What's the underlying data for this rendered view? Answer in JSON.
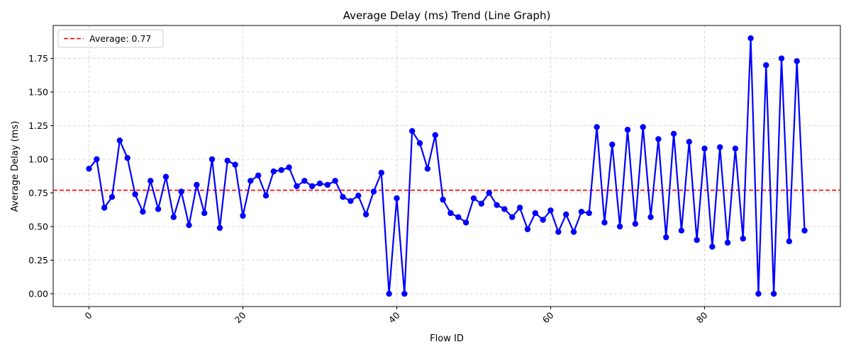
{
  "chart_data": {
    "type": "line",
    "title": "Average Delay (ms) Trend (Line Graph)",
    "xlabel": "Flow ID",
    "ylabel": "Average Delay (ms)",
    "xlim": [
      -4.65,
      97.65
    ],
    "ylim": [
      -0.095,
      1.995
    ],
    "xticks": [
      0,
      20,
      40,
      60,
      80
    ],
    "yticks": [
      0.0,
      0.25,
      0.5,
      0.75,
      1.0,
      1.25,
      1.5,
      1.75
    ],
    "ytick_labels": [
      "0.00",
      "0.25",
      "0.50",
      "0.75",
      "1.00",
      "1.25",
      "1.50",
      "1.75"
    ],
    "xtick_rotation": 45,
    "grid": true,
    "legend": {
      "position": "top-left",
      "entries": [
        "Average: 0.77"
      ]
    },
    "series": [
      {
        "color": "#0000ff",
        "marker": "circle",
        "x": [
          0,
          1,
          2,
          3,
          4,
          5,
          6,
          7,
          8,
          9,
          10,
          11,
          12,
          13,
          14,
          15,
          16,
          17,
          18,
          19,
          20,
          21,
          22,
          23,
          24,
          25,
          26,
          27,
          28,
          29,
          30,
          31,
          32,
          33,
          34,
          35,
          36,
          37,
          38,
          39,
          40,
          41,
          42,
          43,
          44,
          45,
          46,
          47,
          48,
          49,
          50,
          51,
          52,
          53,
          54,
          55,
          56,
          57,
          58,
          59,
          60,
          61,
          62,
          63,
          64,
          65,
          66,
          67,
          68,
          69,
          70,
          71,
          72,
          73,
          74,
          75,
          76,
          77,
          78,
          79,
          80,
          81,
          82,
          83,
          84,
          85,
          86,
          87,
          88,
          89,
          90,
          91,
          92,
          93
        ],
        "values": [
          0.93,
          1.0,
          0.64,
          0.72,
          1.14,
          1.01,
          0.74,
          0.61,
          0.84,
          0.63,
          0.87,
          0.57,
          0.76,
          0.51,
          0.81,
          0.6,
          1.0,
          0.49,
          0.99,
          0.96,
          0.58,
          0.84,
          0.88,
          0.73,
          0.91,
          0.92,
          0.94,
          0.8,
          0.84,
          0.8,
          0.82,
          0.81,
          0.84,
          0.72,
          0.69,
          0.73,
          0.59,
          0.76,
          0.9,
          0.0,
          0.71,
          0.0,
          1.21,
          1.12,
          0.93,
          1.18,
          0.7,
          0.6,
          0.57,
          0.53,
          0.71,
          0.67,
          0.75,
          0.66,
          0.63,
          0.57,
          0.64,
          0.48,
          0.6,
          0.55,
          0.62,
          0.46,
          0.59,
          0.46,
          0.61,
          0.6,
          1.24,
          0.53,
          1.11,
          0.5,
          1.22,
          0.52,
          1.24,
          0.57,
          1.15,
          0.42,
          1.19,
          0.47,
          1.13,
          0.4,
          1.08,
          0.35,
          1.09,
          0.38,
          1.08,
          0.41,
          1.9,
          0.0,
          1.7,
          0.0,
          1.75,
          0.39,
          1.73,
          0.47
        ]
      }
    ],
    "reference_line": {
      "type": "horizontal",
      "y": 0.77,
      "label": "Average: 0.77",
      "color": "#ff0000",
      "style": "dashed"
    }
  }
}
